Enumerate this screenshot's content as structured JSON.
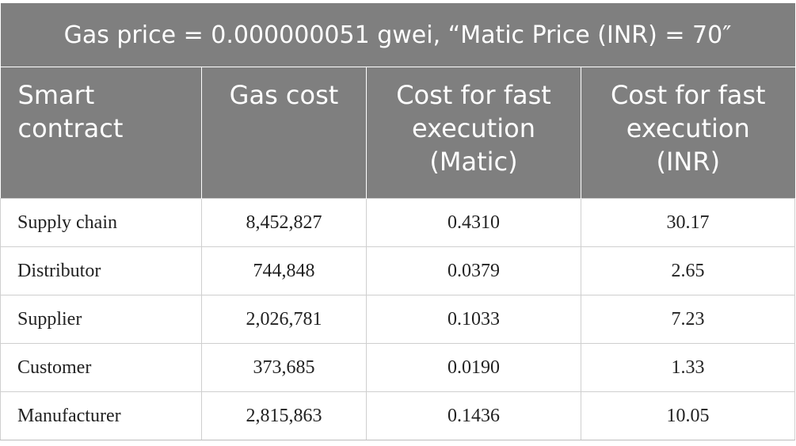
{
  "title": "Gas price = 0.000000051 gwei, “Matic Price (INR) = 70″",
  "headers": {
    "smart_contract": [
      "Smart",
      "contract"
    ],
    "gas_cost": [
      "Gas cost"
    ],
    "cost_matic": [
      "Cost for fast",
      "execution",
      "(Matic)"
    ],
    "cost_inr": [
      "Cost for fast",
      "execution",
      "(INR)"
    ]
  },
  "rows": [
    {
      "contract": "Supply chain",
      "gas_cost": "8,452,827",
      "matic": "0.4310",
      "inr": "30.17"
    },
    {
      "contract": "Distributor",
      "gas_cost": "744,848",
      "matic": "0.0379",
      "inr": "2.65"
    },
    {
      "contract": "Supplier",
      "gas_cost": "2,026,781",
      "matic": "0.1033",
      "inr": "7.23"
    },
    {
      "contract": "Customer",
      "gas_cost": "373,685",
      "matic": "0.0190",
      "inr": "1.33"
    },
    {
      "contract": "Manufacturer",
      "gas_cost": "2,815,863",
      "matic": "0.1436",
      "inr": "10.05"
    }
  ]
}
